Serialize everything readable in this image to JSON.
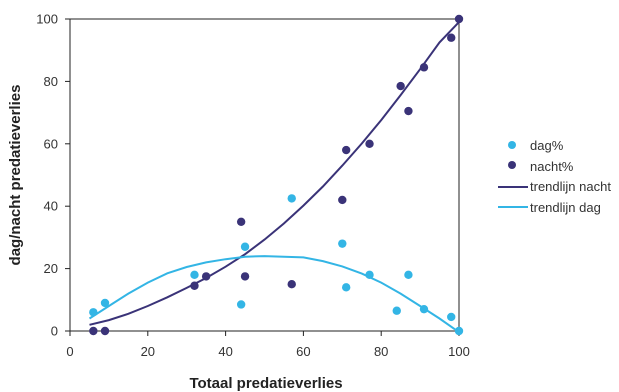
{
  "chart_data": {
    "type": "scatter",
    "xlabel": "Totaal predatieverlies",
    "ylabel": "dag/nacht predatieverlies",
    "xlim": [
      0,
      100
    ],
    "ylim": [
      0,
      100
    ],
    "xticks": [
      0,
      20,
      40,
      60,
      80,
      100
    ],
    "yticks": [
      0,
      20,
      40,
      60,
      80,
      100
    ],
    "grid": false,
    "legend_position": "right",
    "series": [
      {
        "name": "dag%",
        "kind": "points",
        "color": "#33b5e5",
        "points": [
          [
            6,
            6
          ],
          [
            9,
            9
          ],
          [
            32,
            18
          ],
          [
            44,
            8.5
          ],
          [
            45,
            27
          ],
          [
            57,
            42.5
          ],
          [
            70,
            28
          ],
          [
            71,
            14
          ],
          [
            77,
            18
          ],
          [
            84,
            6.5
          ],
          [
            87,
            18
          ],
          [
            91,
            7
          ],
          [
            98,
            4.5
          ],
          [
            100,
            0
          ]
        ]
      },
      {
        "name": "nacht%",
        "kind": "points",
        "color": "#3a3378",
        "points": [
          [
            6,
            0
          ],
          [
            9,
            0
          ],
          [
            32,
            14.5
          ],
          [
            35,
            17.5
          ],
          [
            44,
            35
          ],
          [
            45,
            17.5
          ],
          [
            57,
            15
          ],
          [
            70,
            42
          ],
          [
            71,
            58
          ],
          [
            77,
            60
          ],
          [
            85,
            78.5
          ],
          [
            87,
            70.5
          ],
          [
            91,
            84.5
          ],
          [
            98,
            94
          ],
          [
            100,
            100
          ]
        ]
      },
      {
        "name": "trendlijn nacht",
        "kind": "line",
        "color": "#3a3378",
        "x": [
          5,
          10,
          15,
          20,
          25,
          30,
          35,
          40,
          45,
          50,
          55,
          60,
          65,
          70,
          75,
          80,
          85,
          90,
          95,
          100
        ],
        "y": [
          2,
          3.5,
          5.5,
          8,
          10.8,
          13.8,
          17,
          20.6,
          24.6,
          29.3,
          34.5,
          40.2,
          46.3,
          53,
          60.1,
          67.6,
          75.6,
          83.9,
          92.5,
          99
        ]
      },
      {
        "name": "trendlijn dag",
        "kind": "line",
        "color": "#33b5e5",
        "x": [
          5,
          10,
          15,
          20,
          25,
          30,
          35,
          40,
          45,
          50,
          55,
          60,
          65,
          70,
          75,
          80,
          85,
          90,
          95,
          99
        ],
        "y": [
          4,
          8,
          12,
          15.5,
          18.5,
          20.5,
          22,
          23,
          23.8,
          24,
          23.8,
          23.6,
          22.4,
          20.7,
          18.4,
          15.5,
          12,
          8,
          4,
          0.5
        ]
      }
    ]
  }
}
